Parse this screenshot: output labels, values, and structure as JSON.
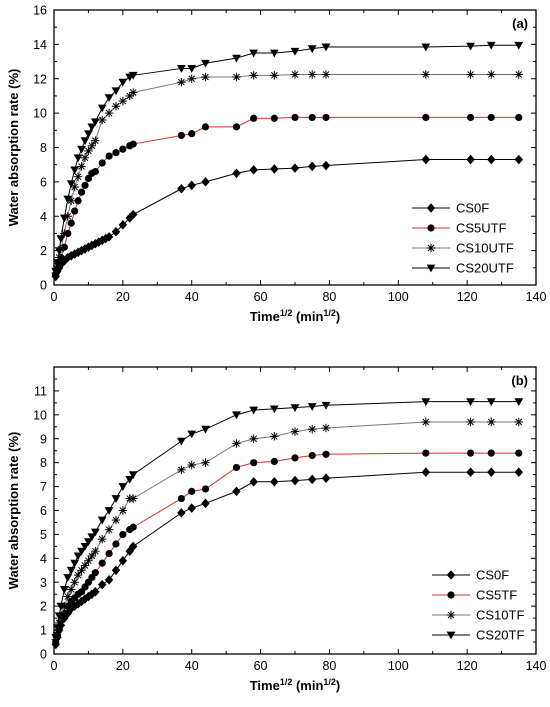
{
  "chart_data": [
    {
      "panel": "(a)",
      "type": "line",
      "xlabel": "Time",
      "xlabel_sup": "1/2",
      "xlabel_unit": " (min",
      "xlabel_unit_sup": "1/2",
      "xlabel_close": ")",
      "ylabel": "Water absorption rate (%)",
      "xlim": [
        0,
        140
      ],
      "ylim": [
        0,
        16
      ],
      "xticks": [
        0,
        20,
        40,
        60,
        80,
        100,
        120,
        140
      ],
      "yticks": [
        0,
        2,
        4,
        6,
        8,
        10,
        12,
        14,
        16
      ],
      "legend_position": "bottom-right",
      "series": [
        {
          "name": "CS0F",
          "marker": "diamond",
          "color": "#000000",
          "x": [
            0.5,
            1,
            1.5,
            2,
            3,
            4,
            5,
            6,
            7,
            8,
            9,
            10,
            11,
            12,
            13,
            14,
            15,
            16,
            18,
            20,
            22,
            23,
            37,
            40,
            44,
            53,
            58,
            64,
            70,
            75,
            79,
            108,
            121,
            127,
            135
          ],
          "y": [
            0.5,
            0.8,
            1.0,
            1.2,
            1.4,
            1.6,
            1.7,
            1.8,
            1.9,
            2.0,
            2.1,
            2.2,
            2.3,
            2.4,
            2.5,
            2.6,
            2.7,
            2.8,
            3.1,
            3.5,
            3.9,
            4.1,
            5.6,
            5.8,
            6.0,
            6.5,
            6.7,
            6.75,
            6.8,
            6.9,
            6.95,
            7.3,
            7.3,
            7.3,
            7.3
          ]
        },
        {
          "name": "CS5UTF",
          "marker": "circle",
          "color": "#000000",
          "line_color": "#d32f2f",
          "x": [
            0.5,
            1,
            1.5,
            2,
            3,
            4,
            5,
            6,
            7,
            8,
            9,
            10,
            11,
            12,
            14,
            16,
            18,
            20,
            22,
            23,
            37,
            40,
            44,
            53,
            58,
            64,
            70,
            75,
            79,
            108,
            121,
            127,
            135
          ],
          "y": [
            0.6,
            0.9,
            1.2,
            1.6,
            2.2,
            3.0,
            3.6,
            4.3,
            4.9,
            5.4,
            5.8,
            6.2,
            6.5,
            6.6,
            7.1,
            7.5,
            7.7,
            7.9,
            8.1,
            8.2,
            8.7,
            8.8,
            9.2,
            9.2,
            9.7,
            9.7,
            9.75,
            9.75,
            9.75,
            9.75,
            9.75,
            9.75,
            9.75
          ]
        },
        {
          "name": "CS10UTF",
          "marker": "asterisk",
          "color": "#000000",
          "line_color": "#777777",
          "x": [
            0.5,
            1,
            1.5,
            2,
            3,
            4,
            5,
            6,
            7,
            8,
            9,
            10,
            11,
            12,
            14,
            16,
            18,
            20,
            22,
            23,
            37,
            40,
            44,
            53,
            58,
            64,
            70,
            75,
            79,
            108,
            121,
            127,
            135
          ],
          "y": [
            0.7,
            1.1,
            1.6,
            2.1,
            3.0,
            4.0,
            4.9,
            5.7,
            6.3,
            6.9,
            7.4,
            7.8,
            8.1,
            8.4,
            9.6,
            10.0,
            10.4,
            10.7,
            11.0,
            11.2,
            11.8,
            12.0,
            12.1,
            12.1,
            12.2,
            12.2,
            12.25,
            12.25,
            12.25,
            12.25,
            12.25,
            12.25,
            12.25
          ]
        },
        {
          "name": "CS20UTF",
          "marker": "triangle-down",
          "color": "#000000",
          "x": [
            0.5,
            1,
            1.5,
            2,
            3,
            4,
            5,
            6,
            7,
            8,
            9,
            10,
            11,
            12,
            14,
            16,
            18,
            20,
            22,
            23,
            37,
            40,
            44,
            53,
            58,
            64,
            70,
            75,
            79,
            108,
            121,
            127,
            135
          ],
          "y": [
            0.8,
            1.3,
            2.0,
            2.7,
            3.9,
            5.0,
            5.9,
            6.7,
            7.4,
            7.9,
            8.4,
            8.8,
            9.2,
            9.5,
            10.3,
            10.9,
            11.3,
            11.8,
            12.1,
            12.2,
            12.6,
            12.6,
            12.9,
            13.2,
            13.5,
            13.5,
            13.6,
            13.75,
            13.85,
            13.85,
            13.9,
            13.95,
            13.95
          ]
        }
      ]
    },
    {
      "panel": "(b)",
      "type": "line",
      "xlabel": "Time",
      "xlabel_sup": "1/2",
      "xlabel_unit": " (min",
      "xlabel_unit_sup": "1/2",
      "xlabel_close": ")",
      "ylabel": "Water absorption rate (%)",
      "xlim": [
        0,
        140
      ],
      "ylim": [
        0,
        12
      ],
      "xticks": [
        0,
        20,
        40,
        60,
        80,
        100,
        120,
        140
      ],
      "yticks": [
        0,
        0.5,
        1,
        1.5,
        2,
        2.5,
        3,
        3.5,
        4,
        4.5,
        5,
        5.5,
        6,
        6.5,
        7,
        7.5,
        8,
        8.5,
        9,
        9.5,
        10,
        10.5,
        11,
        11.5,
        12
      ],
      "yticks_labeled": [
        0,
        1,
        2,
        3,
        4,
        5,
        6,
        7,
        8,
        9,
        10,
        11
      ],
      "legend_position": "bottom-right",
      "series": [
        {
          "name": "CS0F",
          "marker": "diamond",
          "color": "#000000",
          "x": [
            0.5,
            1,
            1.5,
            2,
            3,
            4,
            5,
            6,
            7,
            8,
            9,
            10,
            11,
            12,
            14,
            16,
            18,
            20,
            22,
            23,
            37,
            40,
            44,
            53,
            58,
            64,
            70,
            75,
            79,
            108,
            121,
            127,
            135
          ],
          "y": [
            0.4,
            0.7,
            1.0,
            1.2,
            1.5,
            1.7,
            1.9,
            2.0,
            2.1,
            2.2,
            2.3,
            2.4,
            2.5,
            2.6,
            2.9,
            3.1,
            3.5,
            3.9,
            4.3,
            4.5,
            5.9,
            6.1,
            6.3,
            6.8,
            7.2,
            7.2,
            7.25,
            7.3,
            7.35,
            7.6,
            7.6,
            7.6,
            7.6
          ]
        },
        {
          "name": "CS5TF",
          "marker": "circle",
          "color": "#000000",
          "line_color": "#d32f2f",
          "x": [
            0.5,
            1,
            1.5,
            2,
            3,
            4,
            5,
            6,
            7,
            8,
            9,
            10,
            11,
            12,
            14,
            16,
            18,
            20,
            22,
            23,
            37,
            40,
            44,
            53,
            58,
            64,
            70,
            75,
            79,
            108,
            121,
            127,
            135
          ],
          "y": [
            0.5,
            0.8,
            1.1,
            1.4,
            1.7,
            2.0,
            2.2,
            2.35,
            2.5,
            2.6,
            2.8,
            3.0,
            3.2,
            3.4,
            3.8,
            4.2,
            4.6,
            5.0,
            5.2,
            5.3,
            6.5,
            6.8,
            6.9,
            7.8,
            8.0,
            8.05,
            8.2,
            8.3,
            8.35,
            8.4,
            8.4,
            8.4,
            8.4
          ]
        },
        {
          "name": "CS10TF",
          "marker": "asterisk",
          "color": "#000000",
          "line_color": "#777777",
          "x": [
            0.5,
            1,
            1.5,
            2,
            3,
            4,
            5,
            6,
            7,
            8,
            9,
            10,
            11,
            12,
            14,
            16,
            18,
            20,
            22,
            23,
            37,
            40,
            44,
            53,
            58,
            64,
            70,
            75,
            79,
            108,
            121,
            127,
            135
          ],
          "y": [
            0.6,
            0.9,
            1.3,
            1.6,
            2.0,
            2.4,
            2.7,
            3.0,
            3.3,
            3.5,
            3.7,
            3.9,
            4.1,
            4.3,
            4.8,
            5.2,
            5.6,
            6.0,
            6.5,
            6.5,
            7.7,
            7.9,
            8.0,
            8.8,
            9.0,
            9.1,
            9.3,
            9.4,
            9.45,
            9.7,
            9.7,
            9.7,
            9.7
          ]
        },
        {
          "name": "CS20TF",
          "marker": "triangle-down",
          "color": "#000000",
          "x": [
            0.5,
            1,
            1.5,
            2,
            3,
            4,
            5,
            6,
            7,
            8,
            9,
            10,
            11,
            12,
            14,
            16,
            18,
            20,
            22,
            23,
            37,
            40,
            44,
            53,
            58,
            64,
            70,
            75,
            79,
            108,
            121,
            127,
            135
          ],
          "y": [
            0.7,
            1.1,
            1.6,
            2.0,
            2.7,
            3.2,
            3.5,
            3.8,
            4.1,
            4.3,
            4.5,
            4.7,
            4.9,
            5.1,
            5.6,
            6.0,
            6.5,
            7.0,
            7.3,
            7.5,
            8.9,
            9.2,
            9.4,
            10.0,
            10.2,
            10.25,
            10.3,
            10.35,
            10.4,
            10.55,
            10.55,
            10.55,
            10.55
          ]
        }
      ]
    }
  ]
}
